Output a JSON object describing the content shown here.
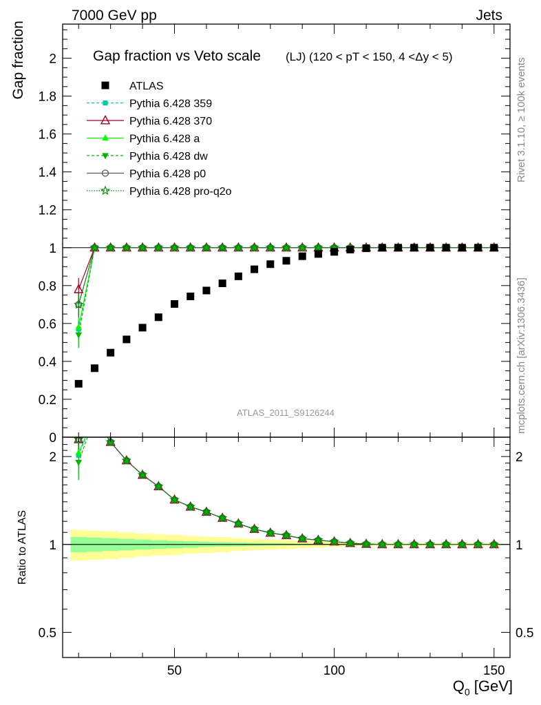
{
  "header": {
    "left": "7000 GeV pp",
    "right": "Jets"
  },
  "side_labels": {
    "rivet": "Rivet 3.1.10, ≥ 100k events",
    "mcplots": "mcplots.cern.ch [arXiv:1306.3436]"
  },
  "watermark": "ATLAS_2011_S9126244",
  "colors": {
    "atlas": "#000000",
    "p359": "#00c8a0",
    "p370": "#a0001e",
    "pa": "#00ff00",
    "pdw": "#00b400",
    "pp0": "#5a5a5a",
    "pproq2o": "#008000",
    "band_total": "#ffff96",
    "band_stat": "#96ff96"
  },
  "chart_data": [
    {
      "type": "scatter",
      "title_main": "Gap fraction vs Veto scale",
      "title_sub": "(LJ) (120 < pT < 150, 4 <Δy < 5)",
      "ylabel": "Gap fraction",
      "xlabel": "Q",
      "xlabel_sub": "0",
      "xlabel_unit": " [GeV]",
      "xlim": [
        15,
        155
      ],
      "ylim": [
        0,
        2.18
      ],
      "y_ticks": [
        "0",
        "0.2",
        "0.4",
        "0.6",
        "0.8",
        "1",
        "1.2",
        "1.4",
        "1.6",
        "1.8",
        "2"
      ],
      "legend_position": "top-left",
      "legend": [
        {
          "key": "atlas",
          "label": "ATLAS"
        },
        {
          "key": "p359",
          "label": "Pythia 6.428 359"
        },
        {
          "key": "p370",
          "label": "Pythia 6.428 370"
        },
        {
          "key": "pa",
          "label": "Pythia 6.428 a"
        },
        {
          "key": "pdw",
          "label": "Pythia 6.428 dw"
        },
        {
          "key": "pp0",
          "label": "Pythia 6.428 p0"
        },
        {
          "key": "pproq2o",
          "label": "Pythia 6.428 pro-q2o"
        }
      ],
      "x": [
        20,
        25,
        30,
        35,
        40,
        45,
        50,
        55,
        60,
        65,
        70,
        75,
        80,
        85,
        90,
        95,
        100,
        105,
        110,
        115,
        120,
        125,
        130,
        135,
        140,
        145,
        150
      ],
      "atlas": [
        0.282,
        0.364,
        0.446,
        0.516,
        0.578,
        0.633,
        0.703,
        0.743,
        0.774,
        0.812,
        0.849,
        0.886,
        0.913,
        0.931,
        0.955,
        0.967,
        0.978,
        0.99,
        0.997,
        1.0,
        1.0,
        1.0,
        1.0,
        1.0,
        1.0,
        1.0,
        1.0
      ],
      "mc_first": {
        "p359": 0.57,
        "p370": 0.78,
        "pa": 0.58,
        "pdw": 0.54,
        "pp0": 0.7,
        "pproq2o": 0.7
      },
      "mc_first_err": {
        "p359": 0.06,
        "p370": 0.06,
        "pa": 0.06,
        "pdw": 0.07,
        "pp0": 0.07,
        "pproq2o": 0.06
      },
      "mc_rest": 1.0
    },
    {
      "type": "scatter",
      "ylabel": "Ratio to ATLAS",
      "y_scale": "log",
      "ylim": [
        0.41,
        2.33
      ],
      "y_ticks": [
        "0.5",
        "1",
        "2"
      ],
      "x_ticks": [
        "50",
        "100",
        "150"
      ],
      "ratio_first": {
        "p359": 2.02,
        "p370": 2.29,
        "pa": 2.06,
        "pdw": 1.91,
        "pp0": 2.29,
        "pproq2o": 2.29
      },
      "band_total": [
        0.12,
        0.115,
        0.11,
        0.1,
        0.09,
        0.085,
        0.08,
        0.07,
        0.065,
        0.06,
        0.05,
        0.045,
        0.04,
        0.035,
        0.03,
        0.025,
        0.02,
        0.015,
        0.012,
        0.01,
        0.01,
        0.01,
        0.01,
        0.01,
        0.01,
        0.01,
        0.01
      ],
      "band_stat": [
        0.06,
        0.055,
        0.05,
        0.045,
        0.04,
        0.035,
        0.03,
        0.025,
        0.02,
        0.018,
        0.015,
        0.012,
        0.01,
        0.008,
        0.006,
        0.005,
        0.004,
        0.003,
        0.002,
        0.002,
        0.002,
        0.002,
        0.002,
        0.002,
        0.002,
        0.002,
        0.002
      ]
    }
  ]
}
